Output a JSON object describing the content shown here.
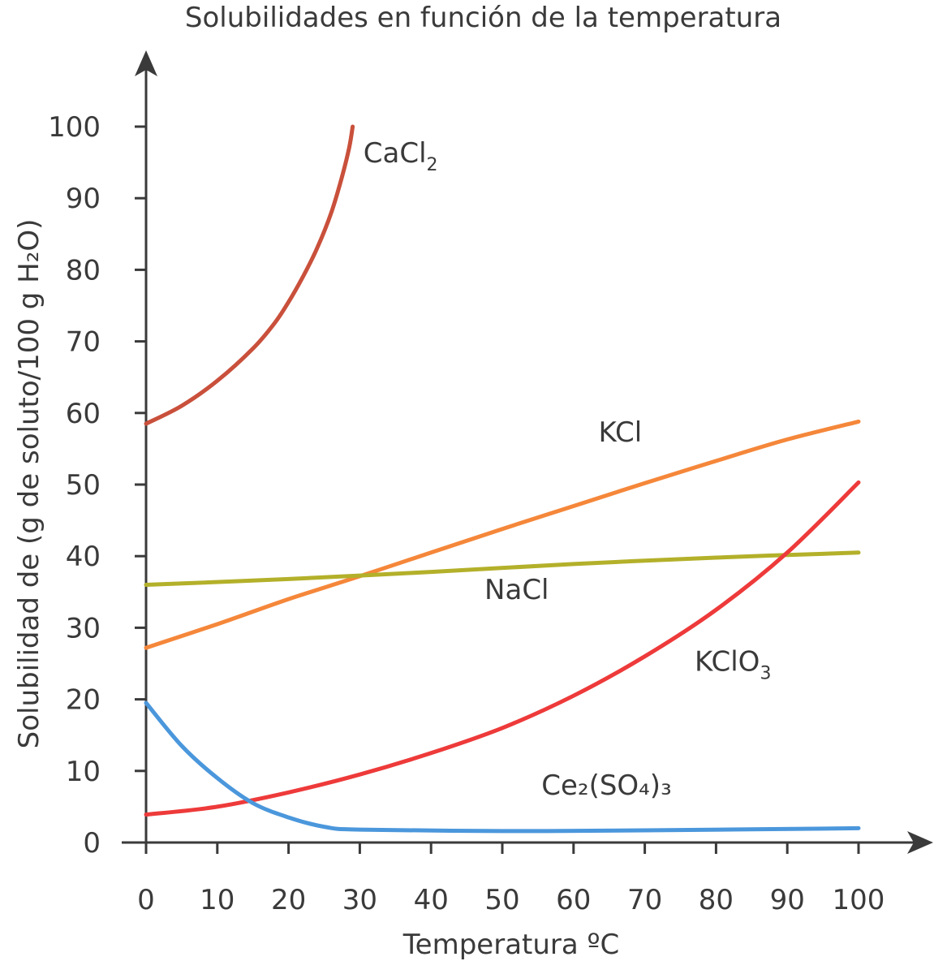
{
  "chart_data": {
    "type": "line",
    "title": "Solubilidades en función de la temperatura",
    "xlabel": "Temperatura ºC",
    "ylabel": "Solubilidad de (g de soluto/100 g H₂O)",
    "xlim": [
      0,
      100
    ],
    "ylim": [
      0,
      100
    ],
    "xticks": [
      0,
      10,
      20,
      30,
      40,
      50,
      60,
      70,
      80,
      90,
      100
    ],
    "yticks": [
      0,
      10,
      20,
      30,
      40,
      50,
      60,
      70,
      80,
      90,
      100
    ],
    "grid": false,
    "legend": "none",
    "series": [
      {
        "name": "CaCl₂",
        "color": "#c9503b",
        "points": [
          [
            0,
            58.5
          ],
          [
            5,
            61
          ],
          [
            10,
            64.5
          ],
          [
            15,
            69
          ],
          [
            18,
            72.5
          ],
          [
            20,
            75.5
          ],
          [
            22,
            79
          ],
          [
            24,
            83
          ],
          [
            26,
            88
          ],
          [
            27.5,
            93
          ],
          [
            28.5,
            97
          ],
          [
            29,
            100
          ]
        ]
      },
      {
        "name": "KCl",
        "color": "#f5873a",
        "points": [
          [
            0,
            27.2
          ],
          [
            10,
            30.5
          ],
          [
            20,
            34
          ],
          [
            30,
            37.2
          ],
          [
            40,
            40.5
          ],
          [
            50,
            43.8
          ],
          [
            60,
            47
          ],
          [
            70,
            50.2
          ],
          [
            80,
            53.3
          ],
          [
            90,
            56.3
          ],
          [
            100,
            58.8
          ]
        ]
      },
      {
        "name": "NaCl",
        "color": "#b3b02a",
        "points": [
          [
            0,
            36
          ],
          [
            20,
            36.8
          ],
          [
            40,
            37.8
          ],
          [
            60,
            38.9
          ],
          [
            80,
            39.8
          ],
          [
            100,
            40.5
          ]
        ]
      },
      {
        "name": "KClO₃",
        "color": "#ee3a3a",
        "points": [
          [
            0,
            3.9
          ],
          [
            10,
            5
          ],
          [
            20,
            7
          ],
          [
            30,
            9.5
          ],
          [
            40,
            12.5
          ],
          [
            50,
            16
          ],
          [
            60,
            20.5
          ],
          [
            70,
            26
          ],
          [
            80,
            32.5
          ],
          [
            90,
            40.5
          ],
          [
            100,
            50.3
          ]
        ]
      },
      {
        "name": "Ce₂(SO₄)₃",
        "color": "#4b97dc",
        "points": [
          [
            0,
            19.5
          ],
          [
            5,
            13.5
          ],
          [
            10,
            9
          ],
          [
            15,
            5.5
          ],
          [
            20,
            3.5
          ],
          [
            25,
            2.2
          ],
          [
            30,
            1.8
          ],
          [
            50,
            1.6
          ],
          [
            70,
            1.7
          ],
          [
            100,
            2
          ]
        ]
      }
    ],
    "annotations": [
      {
        "text": "CaCl",
        "sub": "2",
        "x": 30.5,
        "y": 95
      },
      {
        "text": "KCl",
        "sub": "",
        "x": 63.5,
        "y": 56
      },
      {
        "text": "NaCl",
        "sub": "",
        "x": 47.5,
        "y": 34
      },
      {
        "text": "KClO",
        "sub": "3",
        "x": 77,
        "y": 24
      },
      {
        "text": "Ce₂(SO₄)₃",
        "sub": "",
        "x": 55.5,
        "y": 6.7
      }
    ]
  }
}
